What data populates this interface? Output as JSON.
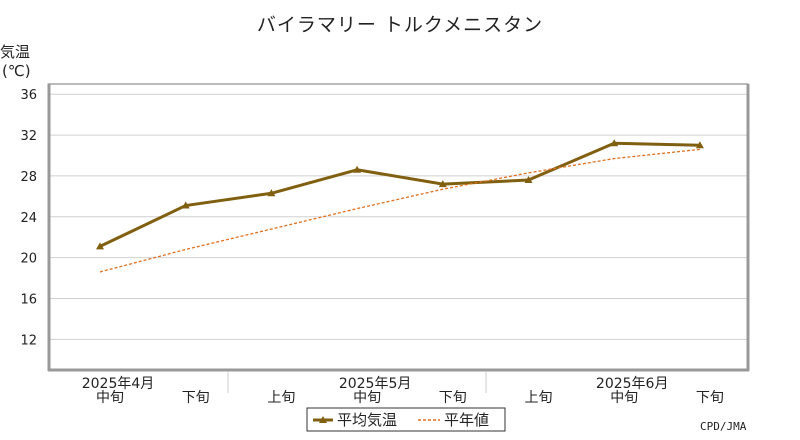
{
  "chart_data": {
    "type": "line",
    "title": "バイラマリー トルクメニスタン",
    "ylabel": "気温\n(℃)",
    "ylim": [
      9,
      37
    ],
    "yticks": [
      12,
      16,
      20,
      24,
      28,
      32,
      36
    ],
    "grid": true,
    "legend_position": "bottom-center",
    "categories": [
      {
        "period": "中旬",
        "month": "2025年4月"
      },
      {
        "period": "下旬",
        "month": ""
      },
      {
        "period": "上旬",
        "month": ""
      },
      {
        "period": "中旬",
        "month": "2025年5月"
      },
      {
        "period": "下旬",
        "month": ""
      },
      {
        "period": "上旬",
        "month": ""
      },
      {
        "period": "中旬",
        "month": "2025年6月"
      },
      {
        "period": "下旬",
        "month": ""
      }
    ],
    "series": [
      {
        "name": "平均気温",
        "values": [
          21.1,
          25.1,
          26.3,
          28.6,
          27.2,
          27.6,
          31.2,
          31.0
        ],
        "color": "#806010",
        "style": "solid-marker"
      },
      {
        "name": "平年値",
        "values": [
          18.6,
          20.8,
          22.8,
          24.8,
          26.7,
          28.3,
          29.7,
          30.6
        ],
        "color": "#e07020",
        "style": "dashed"
      }
    ]
  },
  "credit": "CPD/JMA"
}
